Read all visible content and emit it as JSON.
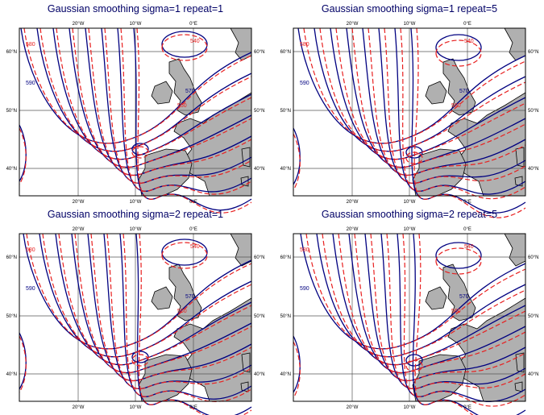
{
  "panels": [
    {
      "title": "Gaussian smoothing sigma=1 repeat=1",
      "contour_labels": [
        580,
        590,
        560,
        570,
        540
      ]
    },
    {
      "title": "Gaussian smoothing sigma=1 repeat=5",
      "contour_labels": [
        580,
        590,
        560,
        570,
        540
      ]
    },
    {
      "title": "Gaussian smoothing sigma=2 repeat=1",
      "contour_labels": [
        580,
        590,
        560,
        570,
        540
      ]
    },
    {
      "title": "Gaussian smoothing sigma=2 repeat=5",
      "contour_labels": [
        580,
        590,
        560,
        570,
        540
      ]
    }
  ],
  "axes": {
    "x_labels": [
      "20°W",
      "10°W",
      "0°E"
    ],
    "y_labels": [
      "60°N",
      "50°N",
      "40°N"
    ]
  }
}
